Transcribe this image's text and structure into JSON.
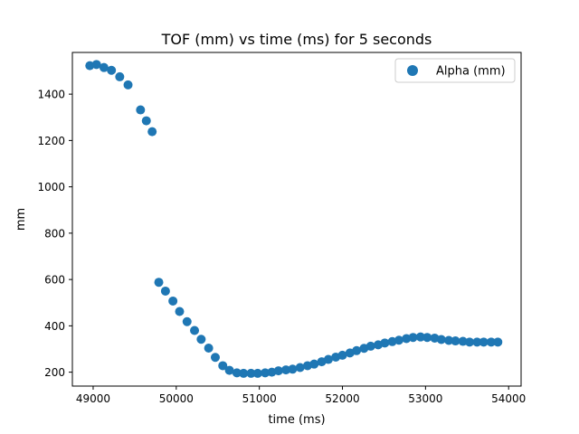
{
  "chart_data": {
    "type": "scatter",
    "title": "TOF (mm) vs time (ms) for 5 seconds",
    "xlabel": "time (ms)",
    "ylabel": "mm",
    "xlim": [
      48750,
      54150
    ],
    "ylim": [
      140,
      1580
    ],
    "xticks": [
      49000,
      50000,
      51000,
      52000,
      53000,
      54000
    ],
    "yticks": [
      200,
      400,
      600,
      800,
      1000,
      1200,
      1400
    ],
    "grid": false,
    "legend_position": "top-right",
    "series": [
      {
        "name": "Alpha (mm)",
        "color": "#1f77b4",
        "marker": "circle",
        "x": [
          48960,
          49040,
          49130,
          49220,
          49320,
          49420,
          49570,
          49640,
          49710,
          49790,
          49870,
          49960,
          50040,
          50130,
          50220,
          50300,
          50390,
          50470,
          50560,
          50640,
          50730,
          50810,
          50900,
          50980,
          51070,
          51150,
          51230,
          51320,
          51400,
          51490,
          51580,
          51660,
          51750,
          51830,
          51920,
          52000,
          52090,
          52170,
          52260,
          52340,
          52430,
          52510,
          52600,
          52680,
          52770,
          52850,
          52940,
          53020,
          53110,
          53190,
          53280,
          53360,
          53450,
          53530,
          53620,
          53700,
          53790,
          53870
        ],
        "y": [
          1523,
          1528,
          1515,
          1503,
          1475,
          1440,
          1332,
          1285,
          1238,
          588,
          550,
          507,
          462,
          418,
          380,
          342,
          304,
          264,
          228,
          208,
          197,
          195,
          195,
          195,
          197,
          200,
          206,
          210,
          213,
          220,
          228,
          235,
          245,
          255,
          265,
          273,
          283,
          293,
          303,
          312,
          318,
          326,
          332,
          338,
          345,
          350,
          352,
          350,
          347,
          341,
          337,
          335,
          333,
          330,
          330,
          330,
          330,
          330
        ]
      }
    ]
  }
}
